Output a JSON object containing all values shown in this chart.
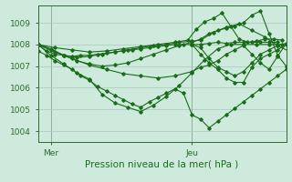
{
  "background_color": "#ceeadc",
  "grid_color": "#a8c8bc",
  "line_color": "#1a6b1a",
  "xlabel": "Pression niveau de la mer( hPa )",
  "ylim": [
    1003.5,
    1009.8
  ],
  "xlim": [
    0,
    58
  ],
  "yticks": [
    1004,
    1005,
    1006,
    1007,
    1008,
    1009
  ],
  "x_mer": 3,
  "x_jeu": 36,
  "lines": [
    [
      0,
      1008.0,
      2,
      1007.7,
      4,
      1007.55,
      6,
      1007.5,
      8,
      1007.45,
      10,
      1007.5,
      12,
      1007.5,
      14,
      1007.55,
      16,
      1007.6,
      18,
      1007.65,
      20,
      1007.7,
      22,
      1007.75,
      24,
      1007.8,
      26,
      1007.85,
      28,
      1007.9,
      30,
      1007.95,
      32,
      1008.0,
      34,
      1008.0,
      36,
      1008.0,
      38,
      1008.0,
      40,
      1008.05,
      42,
      1008.1,
      44,
      1008.05,
      46,
      1008.1,
      48,
      1008.1,
      50,
      1008.1,
      52,
      1008.1,
      54,
      1008.1,
      56,
      1008.1
    ],
    [
      0,
      1008.0,
      3,
      1007.5,
      6,
      1007.1,
      9,
      1006.7,
      12,
      1006.4,
      15,
      1005.7,
      18,
      1005.3,
      21,
      1005.1,
      24,
      1004.9,
      27,
      1005.2,
      30,
      1005.6,
      33,
      1006.1,
      36,
      1006.7,
      39,
      1007.3,
      42,
      1007.8,
      45,
      1008.0,
      48,
      1008.0,
      51,
      1008.0,
      54,
      1008.0,
      57,
      1008.0
    ],
    [
      0,
      1008.0,
      3,
      1007.8,
      6,
      1007.5,
      9,
      1007.25,
      12,
      1007.1,
      15,
      1007.0,
      18,
      1007.05,
      21,
      1007.15,
      24,
      1007.35,
      27,
      1007.55,
      30,
      1007.75,
      33,
      1007.95,
      36,
      1008.1,
      38,
      1008.25,
      40,
      1008.5,
      42,
      1008.65,
      44,
      1008.75,
      46,
      1008.85,
      48,
      1009.0,
      50,
      1009.35,
      52,
      1009.55,
      54,
      1008.5,
      56,
      1007.5,
      58,
      1007.0
    ],
    [
      0,
      1008.0,
      4,
      1007.85,
      8,
      1007.75,
      12,
      1007.65,
      16,
      1007.7,
      20,
      1007.8,
      24,
      1007.9,
      28,
      1008.0,
      32,
      1008.1,
      35,
      1008.2,
      37,
      1008.7,
      39,
      1009.05,
      41,
      1009.2,
      43,
      1009.45,
      45,
      1008.85,
      47,
      1008.25,
      49,
      1008.1,
      51,
      1008.15,
      53,
      1008.25,
      55,
      1008.25,
      57,
      1008.2
    ],
    [
      0,
      1008.0,
      3,
      1007.75,
      6,
      1007.5,
      9,
      1007.4,
      12,
      1007.45,
      15,
      1007.55,
      18,
      1007.65,
      21,
      1007.75,
      24,
      1007.85,
      27,
      1007.95,
      30,
      1008.0,
      33,
      1008.1,
      36,
      1008.15,
      38,
      1008.2,
      41,
      1008.55,
      44,
      1008.8,
      47,
      1008.95,
      50,
      1008.65,
      53,
      1008.35,
      56,
      1007.95,
      59,
      1007.65
    ],
    [
      0,
      1008.0,
      4,
      1007.65,
      8,
      1007.35,
      12,
      1007.05,
      16,
      1006.85,
      20,
      1006.65,
      24,
      1006.55,
      28,
      1006.45,
      32,
      1006.55,
      36,
      1006.75,
      38,
      1006.95,
      40,
      1007.05,
      42,
      1007.25,
      44,
      1007.55,
      46,
      1007.75,
      48,
      1007.95,
      50,
      1007.55,
      52,
      1007.15,
      54,
      1006.85,
      56,
      1007.45,
      58,
      1008.05
    ],
    [
      0,
      1007.7,
      2,
      1007.5,
      4,
      1007.25,
      6,
      1007.05,
      8,
      1006.85,
      10,
      1006.55,
      12,
      1006.35,
      14,
      1006.05,
      16,
      1005.85,
      18,
      1005.65,
      20,
      1005.45,
      22,
      1005.25,
      24,
      1005.1,
      26,
      1005.35,
      28,
      1005.55,
      30,
      1005.75,
      32,
      1005.95,
      34,
      1005.75,
      36,
      1004.75,
      38,
      1004.55,
      40,
      1004.15,
      42,
      1004.45,
      44,
      1004.75,
      46,
      1005.05,
      48,
      1005.35,
      50,
      1005.65,
      52,
      1005.95,
      54,
      1006.25,
      56,
      1006.55,
      58,
      1006.85
    ],
    [
      36,
      1008.0,
      38,
      1007.55,
      40,
      1007.15,
      42,
      1006.85,
      44,
      1006.45,
      46,
      1006.25,
      48,
      1006.25,
      50,
      1006.95,
      52,
      1007.35,
      54,
      1007.55,
      56,
      1007.75,
      58,
      1008.0
    ],
    [
      36,
      1008.0,
      38,
      1007.85,
      40,
      1007.35,
      42,
      1006.95,
      44,
      1006.75,
      46,
      1006.55,
      48,
      1006.75,
      50,
      1007.15,
      52,
      1007.55,
      54,
      1007.75,
      56,
      1007.95,
      58,
      1008.05
    ]
  ]
}
